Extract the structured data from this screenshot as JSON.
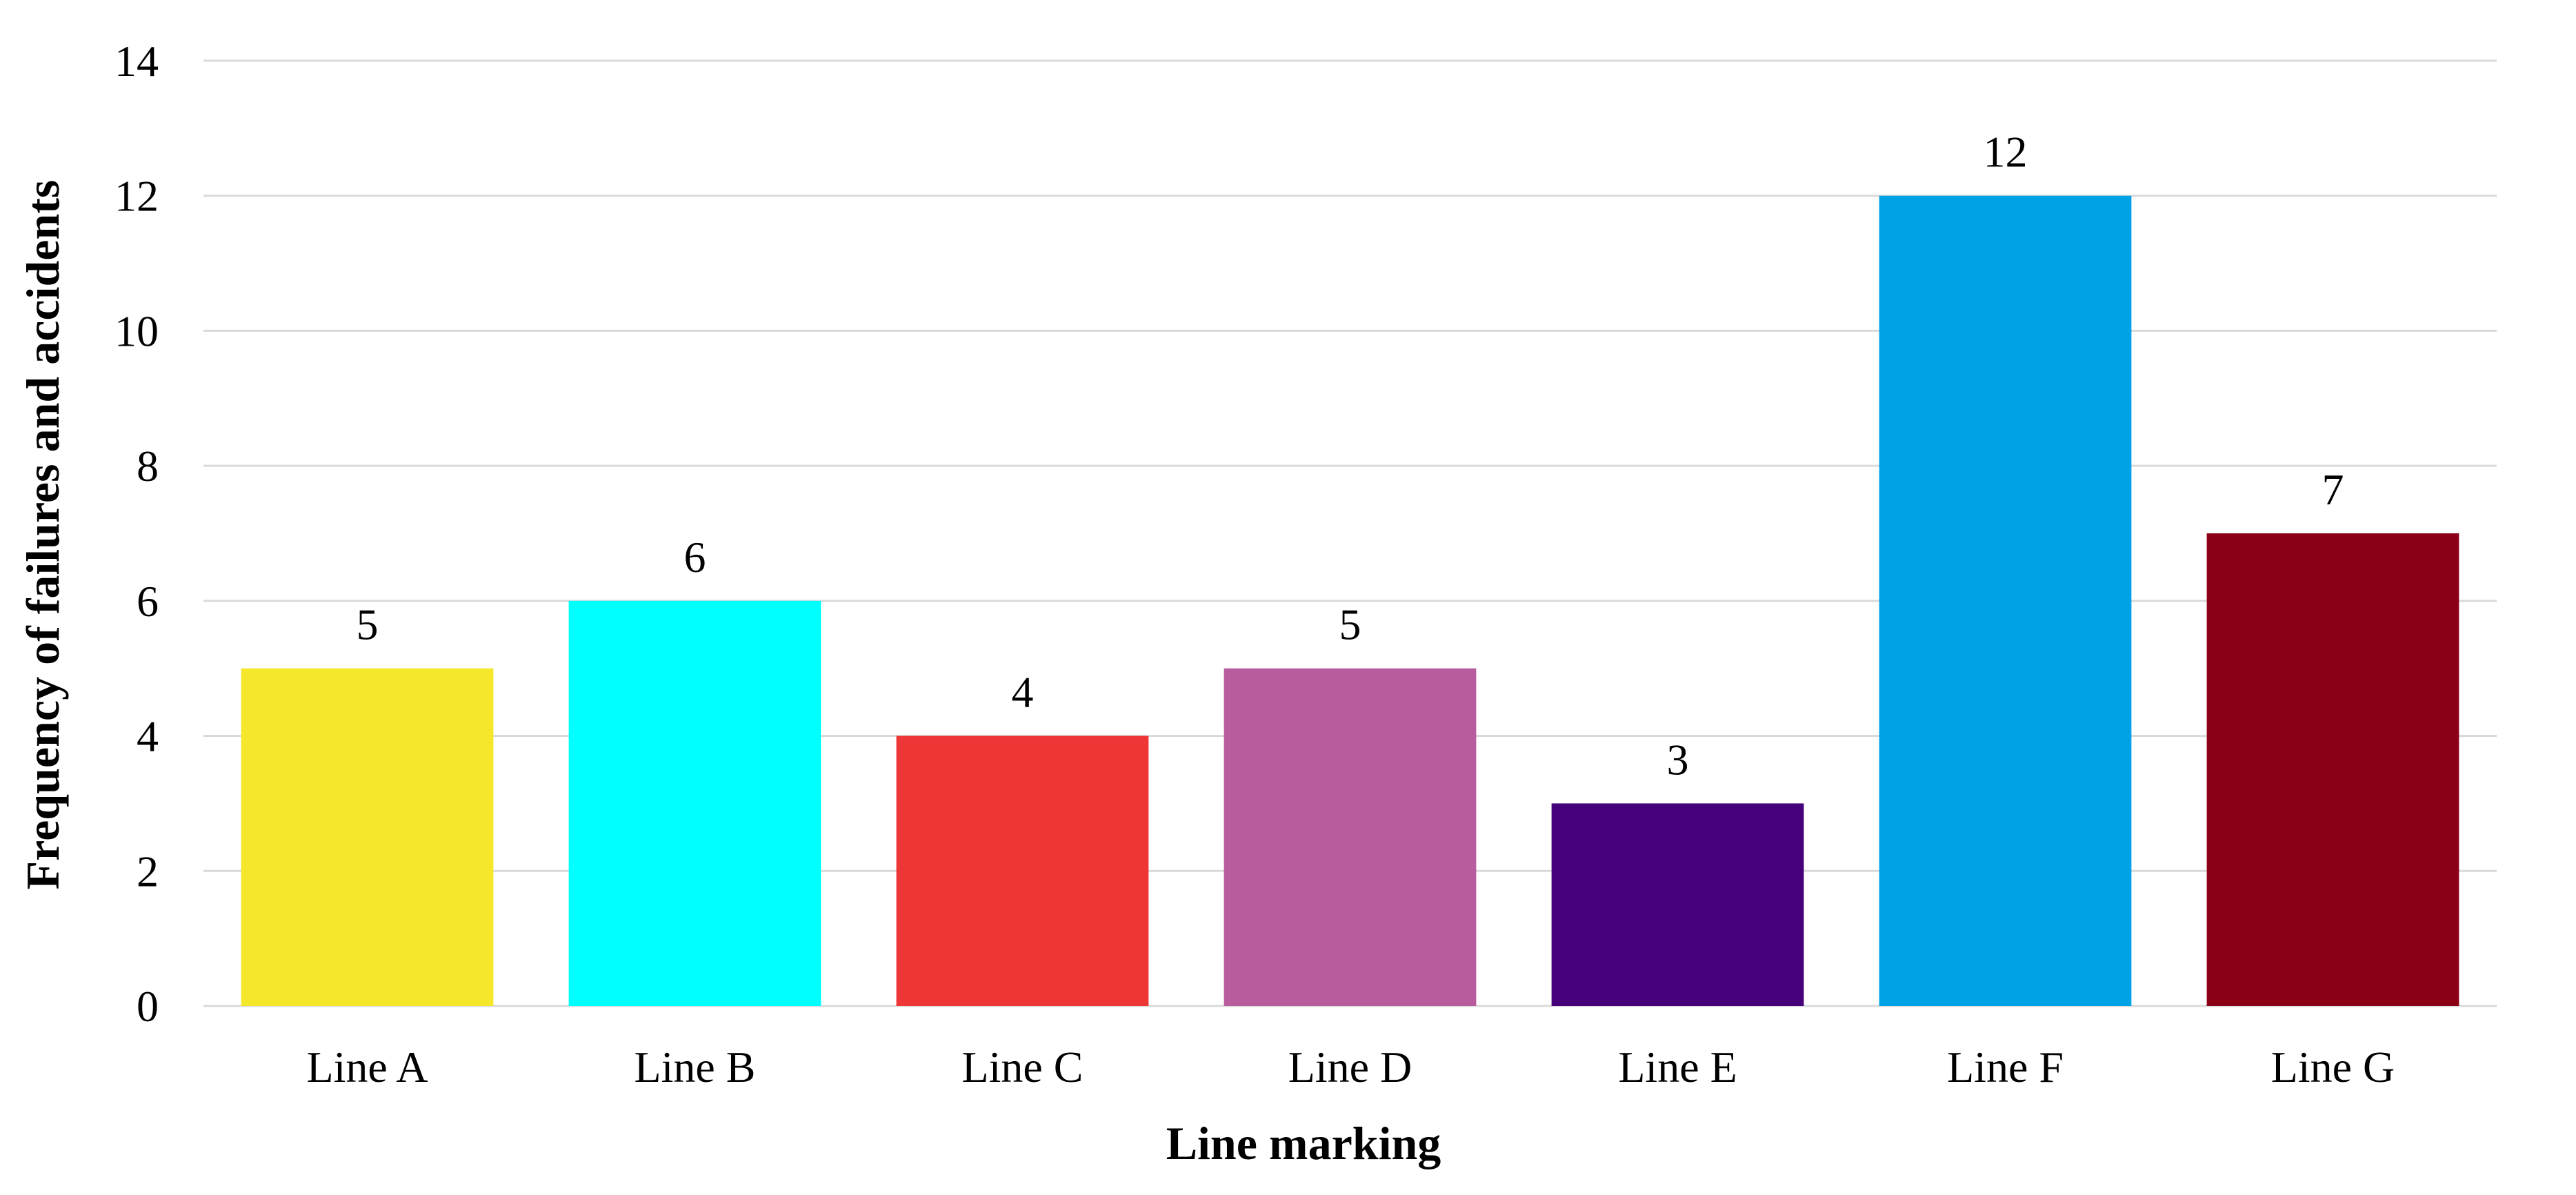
{
  "chart_data": {
    "type": "bar",
    "title": "",
    "xlabel": "Line marking",
    "ylabel": "Frequency of failures and accidents",
    "categories": [
      "Line A",
      "Line B",
      "Line C",
      "Line D",
      "Line E",
      "Line F",
      "Line G"
    ],
    "values": [
      5,
      6,
      4,
      5,
      3,
      12,
      7
    ],
    "data_labels": [
      "5",
      "6",
      "4",
      "5",
      "3",
      "12",
      "7"
    ],
    "colors": [
      "#F5E72A",
      "#00FFFF",
      "#EE3637",
      "#B95C9E",
      "#45007A",
      "#00A2E6",
      "#8B0016"
    ],
    "ylim": [
      0,
      14
    ],
    "yticks": [
      0,
      2,
      4,
      6,
      8,
      10,
      12,
      14
    ],
    "ytick_labels": [
      "0",
      "2",
      "4",
      "6",
      "8",
      "10",
      "12",
      "14"
    ],
    "grid": true,
    "legend": "none"
  }
}
